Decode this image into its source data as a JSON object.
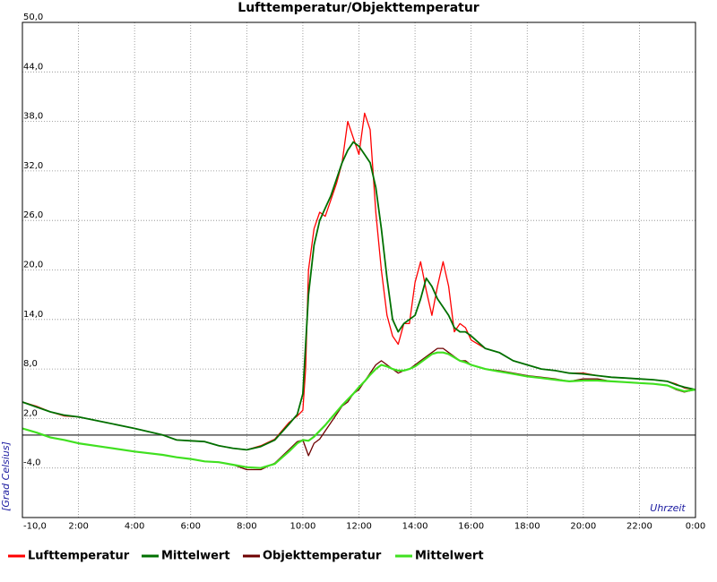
{
  "chart_data": {
    "type": "line",
    "title": "Lufttemperatur/Objekttemperatur",
    "xlabel": "Uhrzeit",
    "ylabel": "[Grad Celsius]",
    "xlim": [
      0,
      24
    ],
    "ylim": [
      -10,
      50
    ],
    "x_ticks": [
      {
        "x": 2,
        "label": "2:00"
      },
      {
        "x": 4,
        "label": "4:00"
      },
      {
        "x": 6,
        "label": "6:00"
      },
      {
        "x": 8,
        "label": "8:00"
      },
      {
        "x": 10,
        "label": "10:00"
      },
      {
        "x": 12,
        "label": "12:00"
      },
      {
        "x": 14,
        "label": "14:00"
      },
      {
        "x": 16,
        "label": "16:00"
      },
      {
        "x": 18,
        "label": "18:00"
      },
      {
        "x": 20,
        "label": "20:00"
      },
      {
        "x": 22,
        "label": "22:00"
      },
      {
        "x": 24,
        "label": "0:00"
      }
    ],
    "y_ticks": [
      {
        "y": -10,
        "label": "-10,0"
      },
      {
        "y": -4,
        "label": "-4,0"
      },
      {
        "y": 2,
        "label": "2,0"
      },
      {
        "y": 8,
        "label": "8,0"
      },
      {
        "y": 14,
        "label": "14,0"
      },
      {
        "y": 20,
        "label": "20,0"
      },
      {
        "y": 26,
        "label": "26,0"
      },
      {
        "y": 32,
        "label": "32,0"
      },
      {
        "y": 38,
        "label": "38,0"
      },
      {
        "y": 44,
        "label": "44,0"
      },
      {
        "y": 50,
        "label": "50,0"
      }
    ],
    "grid": true,
    "zero_line": 0,
    "legend_position": "bottom",
    "series": [
      {
        "name": "Lufttemperatur",
        "color": "#ff0000",
        "x": [
          0,
          0.5,
          1,
          1.5,
          2,
          3,
          4,
          5,
          5.5,
          6,
          6.5,
          7,
          7.5,
          8,
          8.5,
          9,
          9.5,
          9.8,
          10,
          10.1,
          10.2,
          10.4,
          10.6,
          10.8,
          11,
          11.2,
          11.4,
          11.6,
          11.8,
          12,
          12.2,
          12.4,
          12.6,
          12.8,
          13,
          13.2,
          13.4,
          13.6,
          13.8,
          14,
          14.2,
          14.4,
          14.6,
          14.8,
          15,
          15.2,
          15.4,
          15.6,
          15.8,
          16,
          16.5,
          17,
          17.5,
          18,
          18.5,
          19,
          19.5,
          20,
          20.5,
          21,
          21.5,
          22,
          22.5,
          23,
          23.3,
          23.6,
          24
        ],
        "values": [
          4,
          3.5,
          2.8,
          2.3,
          2.2,
          1.5,
          0.8,
          0.0,
          -0.6,
          -0.7,
          -0.8,
          -1.3,
          -1.6,
          -1.8,
          -1.3,
          -0.5,
          1.5,
          2.3,
          3,
          8,
          20,
          25,
          27,
          26.5,
          28.5,
          30.5,
          33,
          38,
          36,
          34,
          39,
          37,
          27,
          20,
          14.5,
          12,
          11,
          13.5,
          13.5,
          18.5,
          21,
          17.5,
          14.5,
          18,
          21,
          18,
          12.5,
          13.5,
          13,
          11.5,
          10.5,
          10,
          9,
          8.5,
          8,
          7.8,
          7.5,
          7.5,
          7.2,
          7,
          6.9,
          6.8,
          6.7,
          6.5,
          6.2,
          5.7,
          5.5
        ]
      },
      {
        "name": "Mittelwert",
        "color": "#007000",
        "x": [
          0,
          0.5,
          1,
          1.5,
          2,
          3,
          4,
          5,
          5.5,
          6,
          6.5,
          7,
          7.5,
          8,
          8.5,
          9,
          9.5,
          9.8,
          10,
          10.2,
          10.4,
          10.6,
          10.8,
          11,
          11.2,
          11.4,
          11.6,
          11.8,
          12,
          12.2,
          12.4,
          12.6,
          12.8,
          13,
          13.2,
          13.4,
          13.6,
          13.8,
          14,
          14.2,
          14.4,
          14.6,
          14.8,
          15,
          15.2,
          15.4,
          15.6,
          15.8,
          16,
          16.5,
          17,
          17.5,
          18,
          18.5,
          19,
          19.5,
          20,
          20.5,
          21,
          21.5,
          22,
          22.5,
          23,
          23.3,
          23.6,
          24
        ],
        "values": [
          4,
          3.4,
          2.8,
          2.4,
          2.2,
          1.5,
          0.8,
          0.0,
          -0.6,
          -0.7,
          -0.8,
          -1.3,
          -1.6,
          -1.8,
          -1.4,
          -0.6,
          1.3,
          2.5,
          5,
          17,
          23,
          26,
          27.5,
          29,
          31,
          33,
          34.5,
          35.5,
          35,
          34,
          33,
          30,
          25,
          19,
          14,
          12.5,
          13.5,
          14,
          14.5,
          16.5,
          19,
          18,
          16.5,
          15.5,
          14.5,
          13,
          12.5,
          12.5,
          12,
          10.5,
          10,
          9,
          8.5,
          8,
          7.8,
          7.5,
          7.4,
          7.2,
          7,
          6.9,
          6.8,
          6.7,
          6.5,
          6.1,
          5.8,
          5.5
        ]
      },
      {
        "name": "Objekttemperatur",
        "color": "#6e0000",
        "x": [
          0,
          0.5,
          1,
          1.5,
          2,
          3,
          4,
          5,
          5.5,
          6,
          6.5,
          7,
          7.5,
          8,
          8.5,
          9,
          9.5,
          9.8,
          10,
          10.2,
          10.4,
          10.6,
          10.8,
          11,
          11.2,
          11.4,
          11.6,
          11.8,
          12,
          12.2,
          12.4,
          12.6,
          12.8,
          13,
          13.2,
          13.4,
          13.6,
          13.8,
          14,
          14.2,
          14.4,
          14.6,
          14.8,
          15,
          15.2,
          15.4,
          15.6,
          15.8,
          16,
          16.5,
          17,
          17.5,
          18,
          18.5,
          19,
          19.5,
          20,
          20.5,
          21,
          21.5,
          22,
          22.5,
          23,
          23.3,
          23.6,
          24
        ],
        "values": [
          0.8,
          0.3,
          -0.3,
          -0.6,
          -1.0,
          -1.5,
          -2.0,
          -2.4,
          -2.7,
          -2.9,
          -3.2,
          -3.3,
          -3.6,
          -4.2,
          -4.2,
          -3.4,
          -1.8,
          -0.8,
          -0.6,
          -2.5,
          -1.0,
          -0.5,
          0.5,
          1.5,
          2.5,
          3.5,
          4.0,
          5.0,
          5.5,
          6.5,
          7.5,
          8.5,
          9.0,
          8.5,
          8.0,
          7.5,
          7.8,
          8.0,
          8.5,
          9.0,
          9.5,
          10.0,
          10.5,
          10.5,
          10.0,
          9.5,
          9.0,
          9.0,
          8.5,
          8.0,
          7.8,
          7.5,
          7.2,
          7.0,
          6.8,
          6.5,
          6.8,
          6.8,
          6.5,
          6.4,
          6.3,
          6.2,
          6.0,
          5.5,
          5.2,
          5.5
        ]
      },
      {
        "name": "Mittelwert",
        "color": "#40e020",
        "x": [
          0,
          0.5,
          1,
          1.5,
          2,
          3,
          4,
          5,
          5.5,
          6,
          6.5,
          7,
          7.5,
          8,
          8.5,
          9,
          9.5,
          9.8,
          10,
          10.2,
          10.4,
          10.6,
          10.8,
          11,
          11.2,
          11.4,
          11.6,
          11.8,
          12,
          12.2,
          12.4,
          12.6,
          12.8,
          13,
          13.2,
          13.4,
          13.6,
          13.8,
          14,
          14.2,
          14.4,
          14.6,
          14.8,
          15,
          15.2,
          15.4,
          15.6,
          15.8,
          16,
          16.5,
          17,
          17.5,
          18,
          18.5,
          19,
          19.5,
          20,
          20.5,
          21,
          21.5,
          22,
          22.5,
          23,
          23.3,
          23.6,
          24
        ],
        "values": [
          0.8,
          0.3,
          -0.3,
          -0.6,
          -1.0,
          -1.5,
          -2.0,
          -2.4,
          -2.7,
          -2.9,
          -3.2,
          -3.3,
          -3.6,
          -3.9,
          -4.0,
          -3.5,
          -2.0,
          -1.0,
          -0.6,
          -0.7,
          -0.2,
          0.5,
          1.2,
          2.0,
          2.8,
          3.6,
          4.3,
          5.0,
          5.8,
          6.5,
          7.3,
          8.0,
          8.5,
          8.3,
          8.0,
          7.8,
          7.8,
          8.0,
          8.3,
          8.8,
          9.3,
          9.8,
          10.0,
          10.0,
          9.8,
          9.4,
          9.0,
          8.8,
          8.5,
          8.0,
          7.7,
          7.4,
          7.1,
          6.9,
          6.7,
          6.5,
          6.6,
          6.6,
          6.5,
          6.4,
          6.3,
          6.2,
          6.0,
          5.6,
          5.3,
          5.5
        ]
      }
    ]
  }
}
